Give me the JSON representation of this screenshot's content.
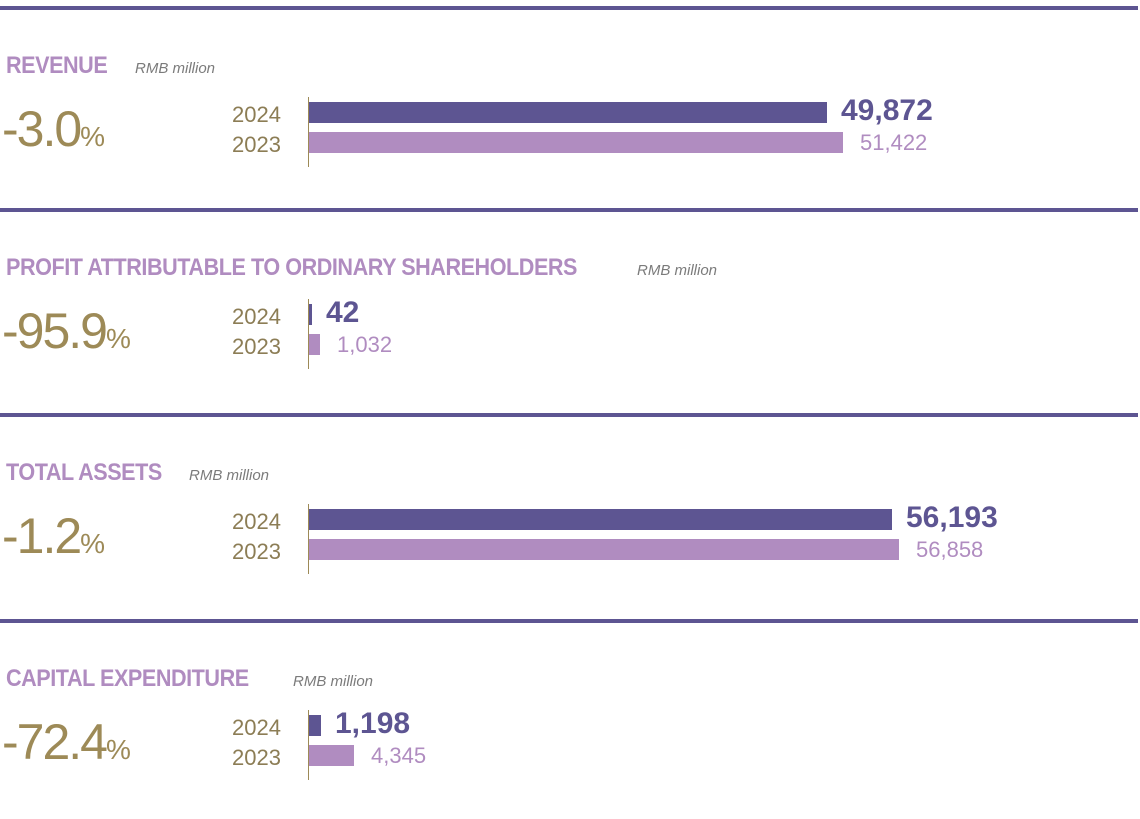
{
  "years": [
    "2024",
    "2023"
  ],
  "colors": {
    "rule": "#5d5592",
    "bar_2024": "#5d5592",
    "bar_2023": "#b08cc0",
    "title": "#b08cc0",
    "change": "#9d8a57"
  },
  "chart_data": [
    {
      "type": "bar",
      "title": "REVENUE",
      "unit": "RMB million",
      "change": "-3.0",
      "change_suffix": "%",
      "categories": [
        "2024",
        "2023"
      ],
      "values": [
        49872,
        51422
      ],
      "labels": [
        "49,872",
        "51,422"
      ]
    },
    {
      "type": "bar",
      "title": "PROFIT ATTRIBUTABLE TO ORDINARY SHAREHOLDERS",
      "unit": "RMB million",
      "change": "-95.9",
      "change_suffix": "%",
      "categories": [
        "2024",
        "2023"
      ],
      "values": [
        42,
        1032
      ],
      "labels": [
        "42",
        "1,032"
      ]
    },
    {
      "type": "bar",
      "title": "TOTAL ASSETS",
      "unit": "RMB million",
      "change": "-1.2",
      "change_suffix": "%",
      "categories": [
        "2024",
        "2023"
      ],
      "values": [
        56193,
        56858
      ],
      "labels": [
        "56,193",
        "56,858"
      ]
    },
    {
      "type": "bar",
      "title": "CAPITAL EXPENDITURE",
      "unit": "RMB million",
      "change": "-72.4",
      "change_suffix": "%",
      "categories": [
        "2024",
        "2023"
      ],
      "values": [
        1198,
        4345
      ],
      "labels": [
        "1,198",
        "4,345"
      ]
    }
  ]
}
